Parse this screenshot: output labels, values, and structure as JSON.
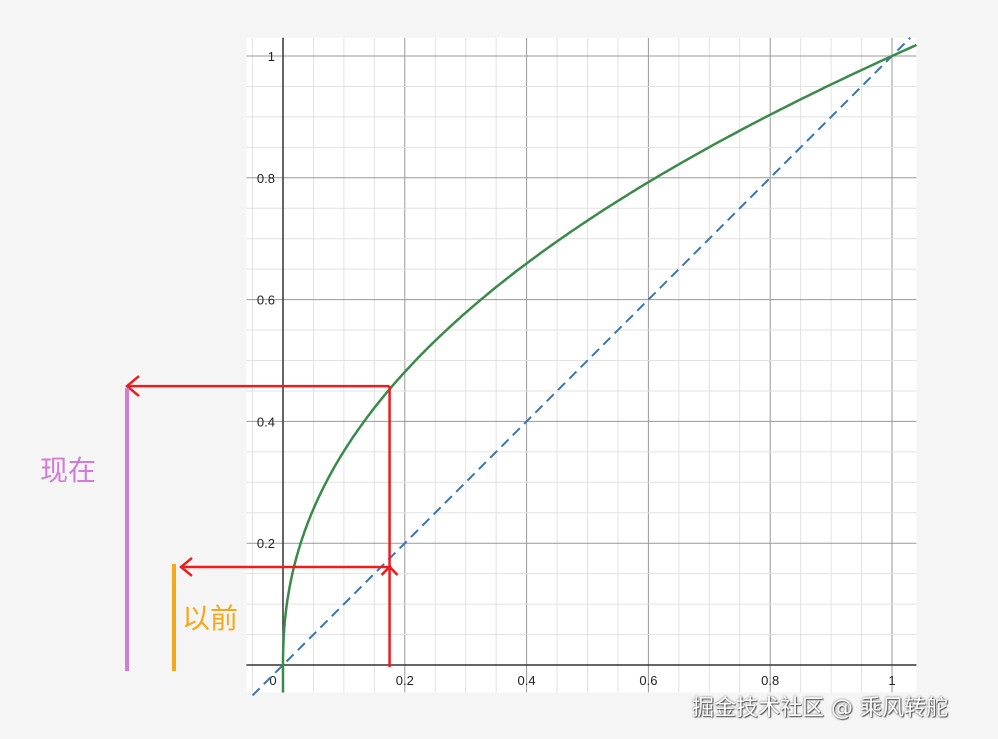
{
  "chart_data": {
    "type": "line",
    "title": "",
    "xlabel": "",
    "ylabel": "",
    "xlim": [
      -0.06,
      1.04
    ],
    "ylim": [
      -0.045,
      1.03
    ],
    "grid": true,
    "major_grid_step": 0.2,
    "minor_grid_step": 0.05,
    "x_ticks": [
      "0",
      "0.2",
      "0.4",
      "0.6",
      "0.8",
      "1"
    ],
    "y_ticks": [
      "0.2",
      "0.4",
      "0.6",
      "0.8",
      "1"
    ],
    "series": [
      {
        "formula": "y = x^(1/2.2)",
        "style": "solid",
        "color": "#3a8a4a",
        "points": [
          [
            0,
            0
          ],
          [
            0.05,
            0.256
          ],
          [
            0.1,
            0.351
          ],
          [
            0.175,
            0.453
          ],
          [
            0.2,
            0.481
          ],
          [
            0.4,
            0.659
          ],
          [
            0.6,
            0.793
          ],
          [
            0.8,
            0.903
          ],
          [
            1,
            1
          ]
        ]
      },
      {
        "formula": "y = x",
        "style": "dashed",
        "color": "#3d74b0",
        "points": [
          [
            -0.05,
            -0.05
          ],
          [
            1.03,
            1.03
          ]
        ]
      }
    ],
    "annotations": {
      "guide_color": "#ee1c1c",
      "guide_x": 0.175,
      "now_y": 0.458,
      "before_y": 0.161,
      "now_label": "现在",
      "now_color": "#d27bd8",
      "before_label": "以前",
      "before_color": "#f5a81c"
    }
  },
  "watermark": "掘金技术社区 @ 乘风转舵"
}
